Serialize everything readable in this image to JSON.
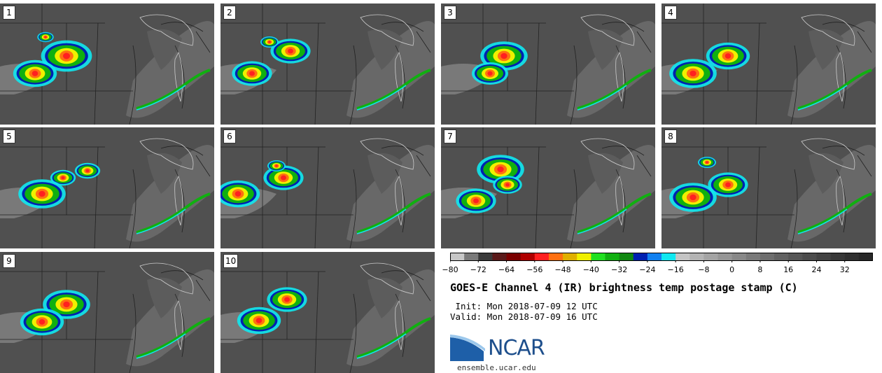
{
  "chart_data": {
    "type": "heatmap",
    "title": "GOES-E Channel 4 (IR) brightness temp postage stamp (C)",
    "panels": [
      "1",
      "2",
      "3",
      "4",
      "5",
      "6",
      "7",
      "8",
      "9",
      "10"
    ],
    "colorbar": {
      "range": [
        -80,
        40
      ],
      "tick_values": [
        -80,
        -72,
        -64,
        -56,
        -48,
        -40,
        -32,
        -24,
        -16,
        -8,
        0,
        8,
        16,
        24,
        32
      ],
      "tick_labels": [
        "−80",
        "−72",
        "−64",
        "−56",
        "−48",
        "−40",
        "−32",
        "−24",
        "−16",
        "−8",
        "0",
        "8",
        "16",
        "24",
        "32"
      ],
      "colors": [
        "#c8c8c8",
        "#7a7a7a",
        "#3a3a3a",
        "#5a1a1a",
        "#7a0000",
        "#b00000",
        "#ff2020",
        "#ff7010",
        "#e0b000",
        "#f0f000",
        "#20e020",
        "#10b010",
        "#108810",
        "#0020b0",
        "#1080f0",
        "#10e8f0",
        "#c4c4c4",
        "#b4b4b4",
        "#a4a4a4",
        "#969696",
        "#888888",
        "#7a7a7a",
        "#6e6e6e",
        "#626262",
        "#565656",
        "#4c4c4c",
        "#424242",
        "#383838",
        "#303030",
        "#282828"
      ]
    }
  },
  "init_line": " Init: Mon 2018-07-09 12 UTC",
  "valid_line": "Valid: Mon 2018-07-09 16 UTC",
  "logo": {
    "name": "NCAR",
    "url_text": "ensemble.ucar.edu"
  }
}
